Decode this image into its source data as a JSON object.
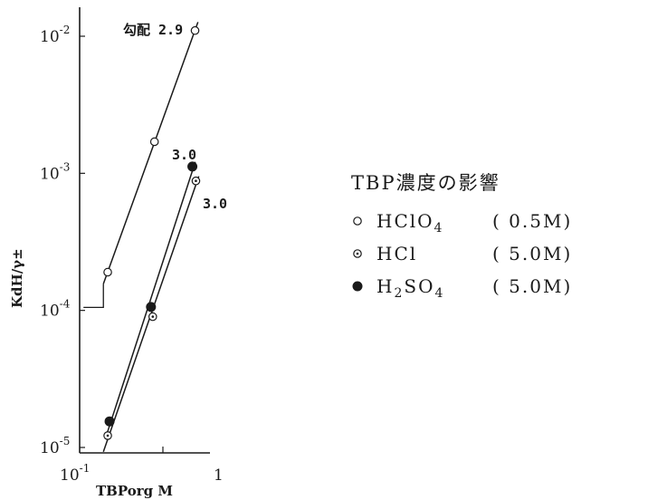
{
  "chart_data": {
    "type": "scatter",
    "title": "TBP濃度の影響",
    "xlabel": "TBPorg M",
    "ylabel": "KdH/γ±",
    "x_scale": "log",
    "y_scale": "log",
    "xlim": [
      0.1,
      1
    ],
    "ylim": [
      1e-05,
      0.01
    ],
    "x_ticks": [
      {
        "base": "10",
        "exp": "-1",
        "value": 0.1
      },
      {
        "label": "1",
        "value": 1
      }
    ],
    "y_ticks": [
      {
        "base": "10",
        "exp": "-2",
        "value": 0.01
      },
      {
        "base": "10",
        "exp": "-3",
        "value": 0.001
      },
      {
        "base": "10",
        "exp": "-4",
        "value": 0.0001
      },
      {
        "base": "10",
        "exp": "-5",
        "value": 1e-05
      }
    ],
    "series": [
      {
        "name": "HClO4",
        "name_display": {
          "main": "HClO",
          "sub": "4"
        },
        "conc": "( 0.5M)",
        "marker": "open-circle",
        "x": [
          0.16,
          0.35,
          0.69
        ],
        "y": [
          0.00019,
          0.0017,
          0.011
        ],
        "slope_label": "勾配 2.9"
      },
      {
        "name": "HCl",
        "name_display": {
          "main": "HCl",
          "sub": ""
        },
        "conc": "( 5.0M)",
        "marker": "dotted-circle",
        "x": [
          0.16,
          0.34,
          0.7
        ],
        "y": [
          1.22e-05,
          9e-05,
          0.00088
        ],
        "slope_label": "3.0"
      },
      {
        "name": "H2SO4",
        "name_display": {
          "main": "H",
          "sub": "2",
          "main2": "SO",
          "sub2": "4"
        },
        "conc": "( 5.0M)",
        "marker": "filled-circle",
        "x": [
          0.165,
          0.33,
          0.66
        ],
        "y": [
          1.55e-05,
          0.000106,
          0.00112
        ],
        "slope_label": "3.0"
      }
    ]
  }
}
